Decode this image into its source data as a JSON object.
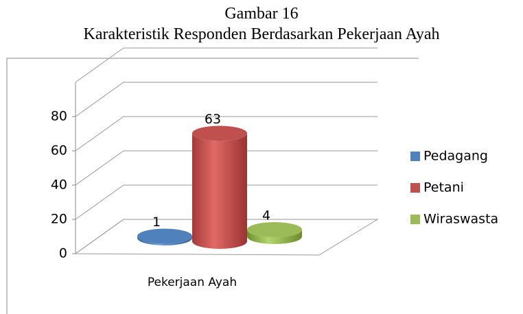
{
  "chart_data": {
    "type": "bar3d",
    "title": "Gambar 16",
    "subtitle": "Karakteristik Responden Berdasarkan Pekerjaan Ayah",
    "categories": [
      "Pekerjaan Ayah"
    ],
    "series": [
      {
        "name": "Pedagang",
        "color": "#4f81bd",
        "values": [
          1
        ]
      },
      {
        "name": "Petani",
        "color": "#c0504d",
        "values": [
          63
        ]
      },
      {
        "name": "Wiraswasta",
        "color": "#9bbb59",
        "values": [
          4
        ]
      }
    ],
    "ylim": [
      0,
      100
    ],
    "yticks": [
      0,
      20,
      40,
      60,
      80
    ],
    "grid": true,
    "legend": "right"
  }
}
